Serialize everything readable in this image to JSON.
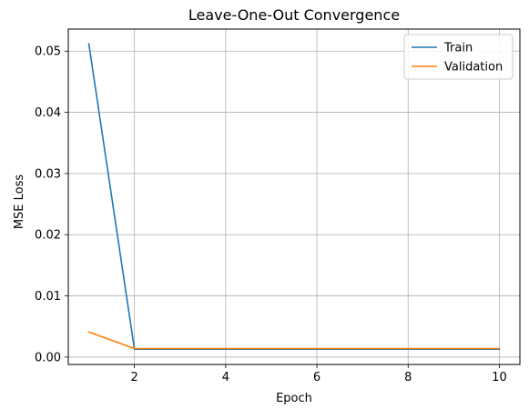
{
  "chart_data": {
    "type": "line",
    "title": "Leave-One-Out Convergence",
    "xlabel": "Epoch",
    "ylabel": "MSE Loss",
    "xlim": [
      0.55,
      10.45
    ],
    "ylim": [
      -0.0012,
      0.0536
    ],
    "xticks": [
      2,
      4,
      6,
      8,
      10
    ],
    "xtick_labels": [
      "2",
      "4",
      "6",
      "8",
      "10"
    ],
    "yticks": [
      0.0,
      0.01,
      0.02,
      0.03,
      0.04,
      0.05
    ],
    "ytick_labels": [
      "0.00",
      "0.01",
      "0.02",
      "0.03",
      "0.04",
      "0.05"
    ],
    "grid": true,
    "legend_position": "top-right",
    "x": [
      1,
      2,
      3,
      4,
      5,
      6,
      7,
      8,
      9,
      10
    ],
    "series": [
      {
        "name": "Train",
        "color": "#1f77b4",
        "values": [
          0.0512,
          0.0013,
          0.0013,
          0.0013,
          0.0013,
          0.0013,
          0.0013,
          0.0013,
          0.0013,
          0.0013
        ]
      },
      {
        "name": "Validation",
        "color": "#ff7f0e",
        "values": [
          0.0041,
          0.0014,
          0.0014,
          0.0014,
          0.0014,
          0.0014,
          0.0014,
          0.0014,
          0.0014,
          0.0014
        ]
      }
    ]
  }
}
